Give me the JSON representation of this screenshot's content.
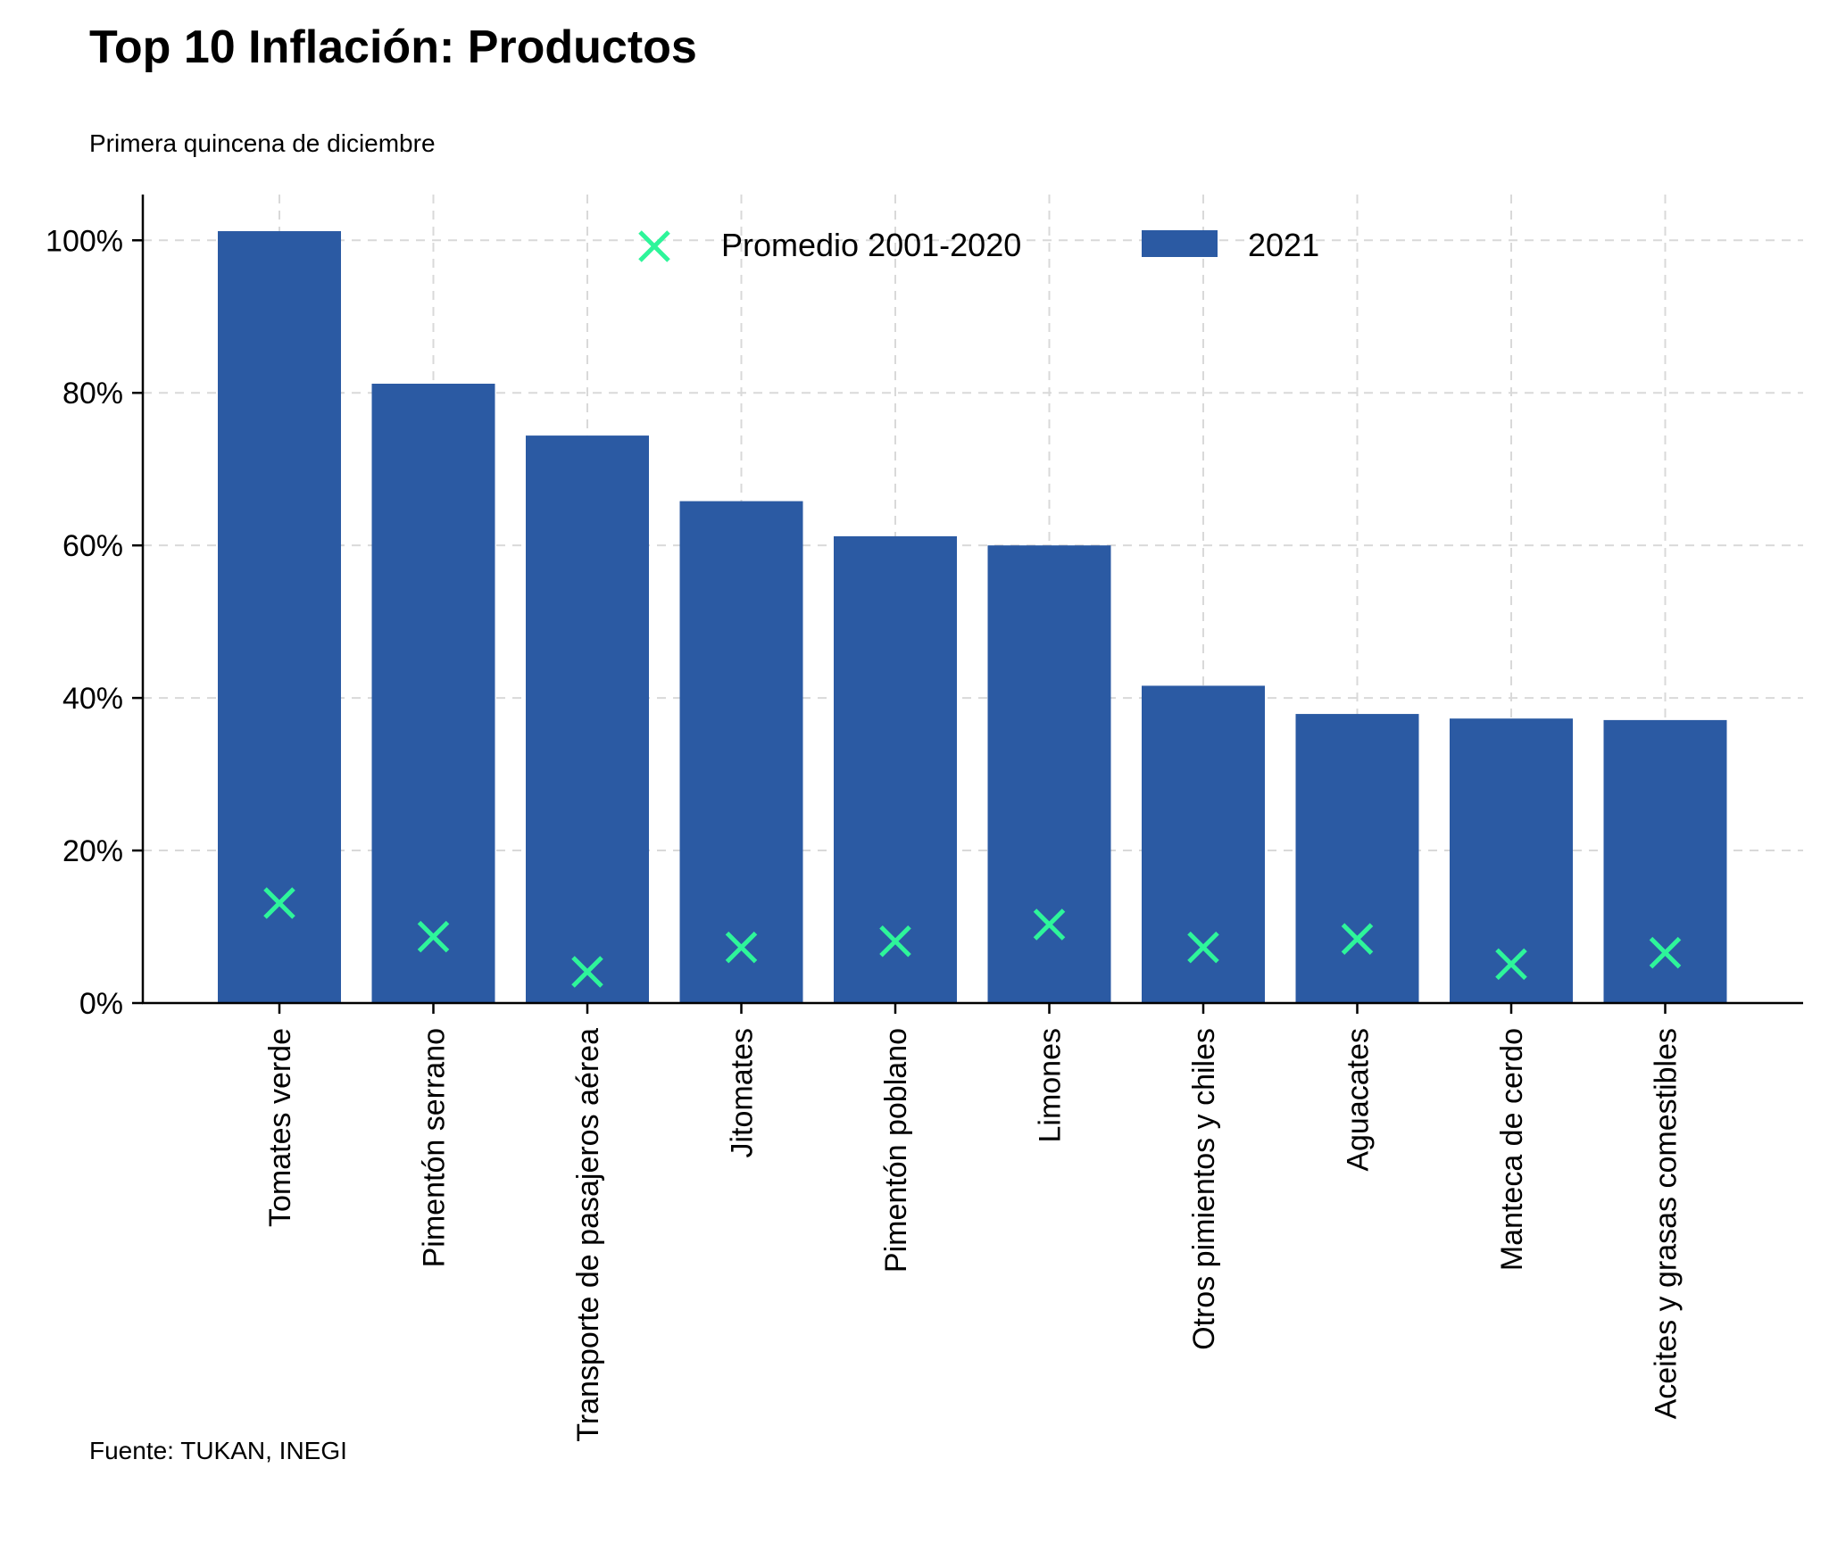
{
  "header": {
    "title": "Top 10 Inflación: Productos",
    "subtitle": "Primera quincena de diciembre"
  },
  "footer": {
    "source": "Fuente: TUKAN, INEGI"
  },
  "colors": {
    "bar": "#2b5aa3",
    "marker": "#2ef59a",
    "grid": "#d9d9d9"
  },
  "chart_data": {
    "type": "bar",
    "title": "Top 10 Inflación: Productos",
    "subtitle": "Primera quincena de diciembre",
    "categories": [
      "Tomates verde",
      "Pimentón serrano",
      "Transporte de pasajeros aérea",
      "Jitomates",
      "Pimentón poblano",
      "Limones",
      "Otros pimientos y chiles",
      "Aguacates",
      "Manteca de cerdo",
      "Aceites y grasas comestibles"
    ],
    "series": [
      {
        "name": "2021",
        "kind": "bar",
        "values": [
          101.2,
          81.2,
          74.4,
          65.8,
          61.2,
          60.0,
          41.6,
          37.9,
          37.3,
          37.1
        ]
      },
      {
        "name": "Promedio 2001-2020",
        "kind": "marker-x",
        "values": [
          13.1,
          8.7,
          4.1,
          7.3,
          8.1,
          10.3,
          7.3,
          8.4,
          5.1,
          6.6
        ]
      }
    ],
    "ylim": [
      0,
      106
    ],
    "yticks": [
      0,
      20,
      40,
      60,
      80,
      100
    ],
    "ytick_labels": [
      "0%",
      "20%",
      "40%",
      "60%",
      "80%",
      "100%"
    ],
    "grid": true,
    "legend": {
      "placement": "top-center",
      "entries": [
        "Promedio 2001-2020",
        "2021"
      ]
    }
  }
}
